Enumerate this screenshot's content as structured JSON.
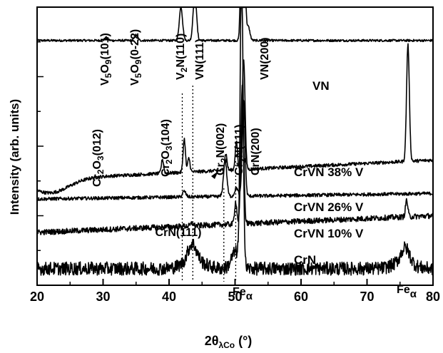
{
  "chart_data": {
    "type": "line",
    "xlabel": "2θλCo (°)",
    "xlabel_main": "2θ",
    "xlabel_sub": "λCo",
    "xlabel_unit": " (°)",
    "ylabel": "Intensity (arb. units)",
    "xlim": [
      20,
      80
    ],
    "x_ticks": [
      20,
      30,
      40,
      50,
      60,
      70,
      80
    ],
    "y_ticks_shown": false,
    "grid": false,
    "legend": "none",
    "series": [
      {
        "name": "VN",
        "baseline": 0.88,
        "peaks": [
          [
            30.5,
            0.01
          ],
          [
            35.0,
            0.02
          ],
          [
            41.8,
            0.12
          ],
          [
            43.9,
            0.18
          ],
          [
            51.2,
            1.6
          ],
          [
            52.0,
            0.05
          ]
        ]
      },
      {
        "name": "CrVN 38% V",
        "baseline": 0.38,
        "slope": 0.0,
        "peaks": [
          [
            39.0,
            0.05
          ],
          [
            42.3,
            0.12
          ],
          [
            43.0,
            0.05
          ],
          [
            48.6,
            0.06
          ],
          [
            50.2,
            0.1
          ],
          [
            51.3,
            0.4
          ],
          [
            76.2,
            0.42
          ]
        ]
      },
      {
        "name": "CrVN 26% V",
        "baseline": 0.31,
        "peaks": [
          [
            42.3,
            0.02
          ],
          [
            48.5,
            0.13
          ],
          [
            50.2,
            0.03
          ],
          [
            51.3,
            0.35
          ]
        ]
      },
      {
        "name": "CrVN 10% V",
        "baseline": 0.19,
        "peaks": [
          [
            43.5,
            0.01
          ],
          [
            50.1,
            0.08
          ],
          [
            51.1,
            0.5
          ],
          [
            76.0,
            0.06
          ]
        ]
      },
      {
        "name": "CrN",
        "baseline": 0.06,
        "peaks": [
          [
            43.5,
            0.06
          ],
          [
            50.1,
            0.06
          ],
          [
            51.0,
            1.1
          ],
          [
            75.8,
            0.05
          ]
        ]
      }
    ],
    "annotations": [
      {
        "main": "V",
        "sub": "5",
        "main2": "O",
        "sub2": "9",
        "hkl": "(101)",
        "x": 30.5
      },
      {
        "main": "V",
        "sub": "5",
        "main2": "O",
        "sub2": "9",
        "hkl": "(0-22)",
        "x": 35.0
      },
      {
        "main": "V",
        "sub": "2",
        "main2": "N",
        "sub2": "",
        "hkl": "(110)",
        "x": 41.8
      },
      {
        "main": "VN",
        "sub": "",
        "main2": "",
        "sub2": "",
        "hkl": "(111)",
        "x": 43.9
      },
      {
        "main": "VN",
        "sub": "",
        "main2": "",
        "sub2": "",
        "hkl": "(200)",
        "x": 52.0
      },
      {
        "main": "Cr",
        "sub": "2",
        "main2": "O",
        "sub2": "3",
        "hkl": "(012)",
        "x": 28.3
      },
      {
        "main": "Cr",
        "sub": "2",
        "main2": "O",
        "sub2": "3",
        "hkl": "(104)",
        "x": 39.0
      },
      {
        "main": "Cr",
        "sub": "2",
        "main2": "N",
        "sub2": "",
        "hkl": "(002)",
        "x": 48.0
      },
      {
        "main": "Cr",
        "sub": "2",
        "main2": "N",
        "sub2": "",
        "hkl": "(111)",
        "x": 50.2
      },
      {
        "main": "CrN",
        "sub": "",
        "main2": "",
        "sub2": "",
        "hkl": "(200)",
        "x": 53.0
      },
      {
        "main": "CrN",
        "sub": "",
        "main2": "",
        "sub2": "",
        "hkl": "(111)",
        "x": 43.0
      }
    ],
    "substrate_labels": [
      {
        "main": "Fe",
        "sub": "α",
        "x": 50.7
      },
      {
        "main": "Fe",
        "sub": "α",
        "x": 76.2
      }
    ],
    "dotted_guides": [
      42.0,
      43.6,
      48.3,
      50.1
    ]
  }
}
